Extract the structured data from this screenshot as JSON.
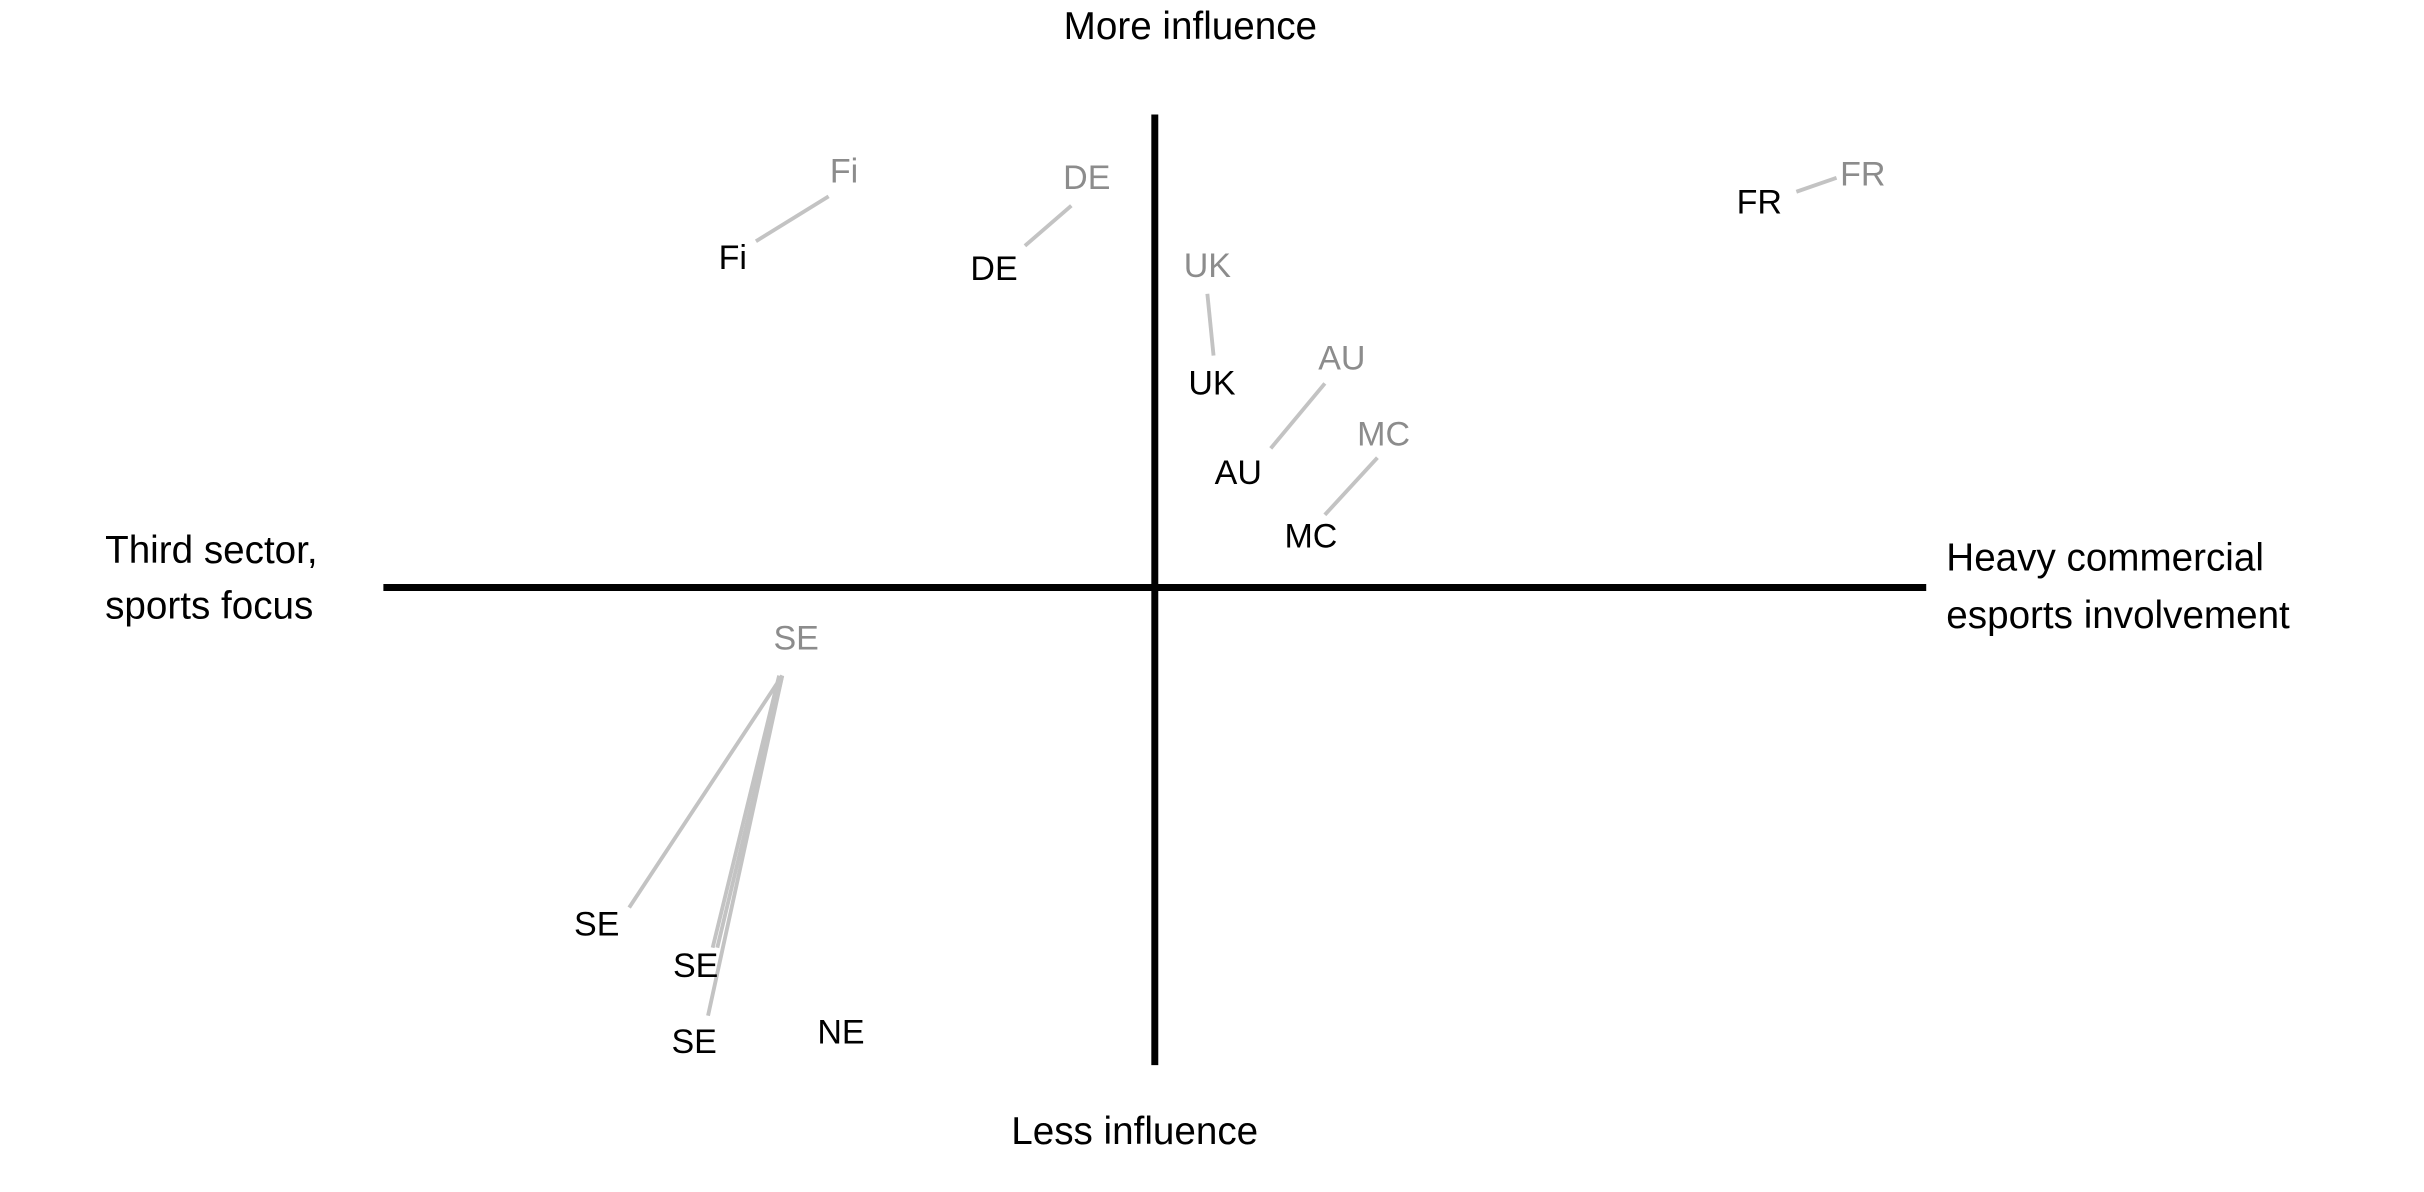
{
  "axes": {
    "top": "More influence",
    "bottom": "Less influence",
    "left": [
      "Third sector,",
      "sports focus"
    ],
    "right": [
      "Heavy commercial",
      "esports involvement"
    ]
  },
  "labels": [
    "Fi",
    "Fi",
    "DE",
    "DE",
    "UK",
    "UK",
    "AU",
    "AU",
    "MC",
    "MC",
    "FR",
    "FR",
    "SE",
    "SE",
    "SE",
    "SE",
    "NE"
  ]
}
